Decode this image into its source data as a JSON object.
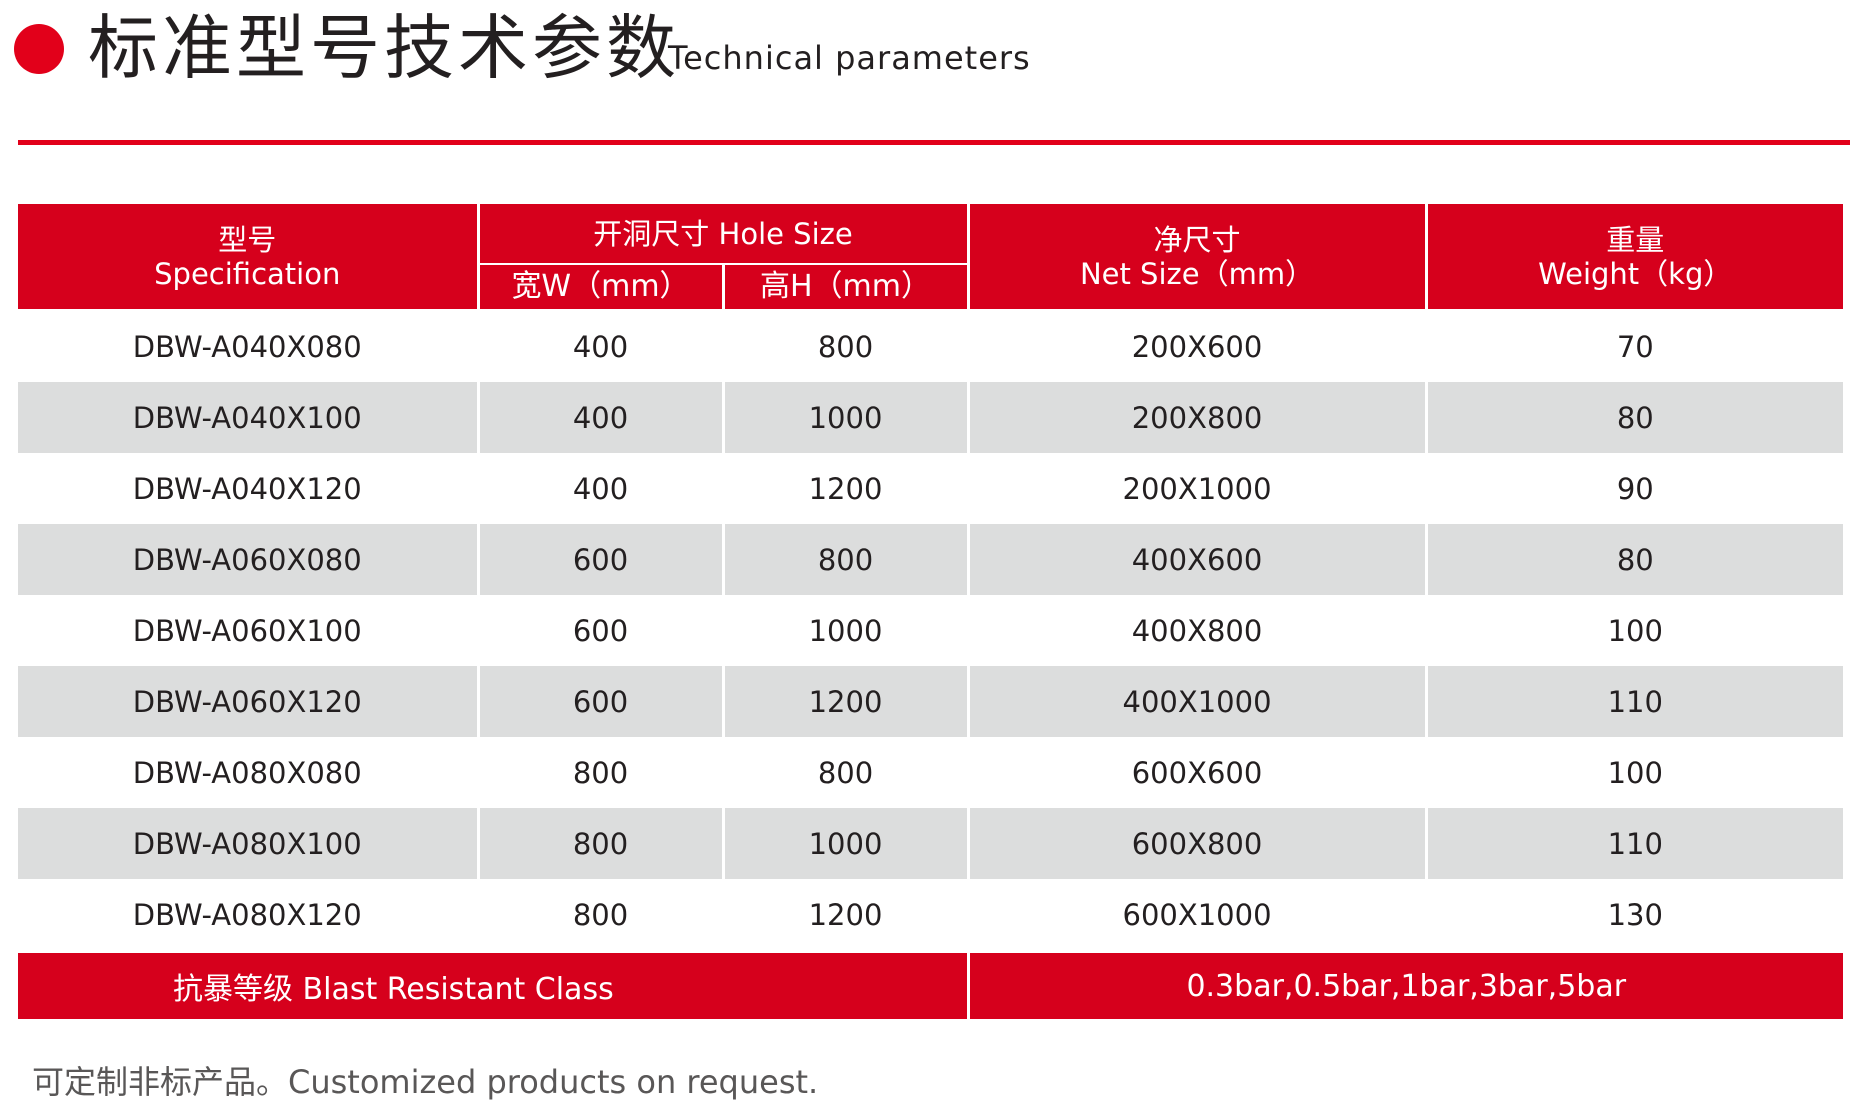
{
  "header": {
    "title_cn": "标准型号技术参数",
    "title_en": "Technical parameters"
  },
  "colors": {
    "accent": "#e2001a",
    "row_alt": "#dcdddd",
    "note_text": "#595757"
  },
  "table": {
    "headers": {
      "spec_cn": "型号",
      "spec_en": "Specification",
      "hole_size": "开洞尺寸 Hole Size",
      "width": "宽W（mm）",
      "height": "高H（mm）",
      "net_cn": "净尺寸",
      "net_en": "Net Size（mm）",
      "weight_cn": "重量",
      "weight_en": "Weight（kg）"
    },
    "rows": [
      {
        "spec": "DBW-A040X080",
        "w": "400",
        "h": "800",
        "net": "200X600",
        "weight": "70"
      },
      {
        "spec": "DBW-A040X100",
        "w": "400",
        "h": "1000",
        "net": "200X800",
        "weight": "80"
      },
      {
        "spec": "DBW-A040X120",
        "w": "400",
        "h": "1200",
        "net": "200X1000",
        "weight": "90"
      },
      {
        "spec": "DBW-A060X080",
        "w": "600",
        "h": "800",
        "net": "400X600",
        "weight": "80"
      },
      {
        "spec": "DBW-A060X100",
        "w": "600",
        "h": "1000",
        "net": "400X800",
        "weight": "100"
      },
      {
        "spec": "DBW-A060X120",
        "w": "600",
        "h": "1200",
        "net": "400X1000",
        "weight": "110"
      },
      {
        "spec": "DBW-A080X080",
        "w": "800",
        "h": "800",
        "net": "600X600",
        "weight": "100"
      },
      {
        "spec": "DBW-A080X100",
        "w": "800",
        "h": "1000",
        "net": "600X800",
        "weight": "110"
      },
      {
        "spec": "DBW-A080X120",
        "w": "800",
        "h": "1200",
        "net": "600X1000",
        "weight": "130"
      }
    ],
    "blast": {
      "label": "抗暴等级  Blast Resistant Class",
      "value": "0.3bar,0.5bar,1bar,3bar,5bar"
    }
  },
  "note": "可定制非标产品。Customized products on request."
}
